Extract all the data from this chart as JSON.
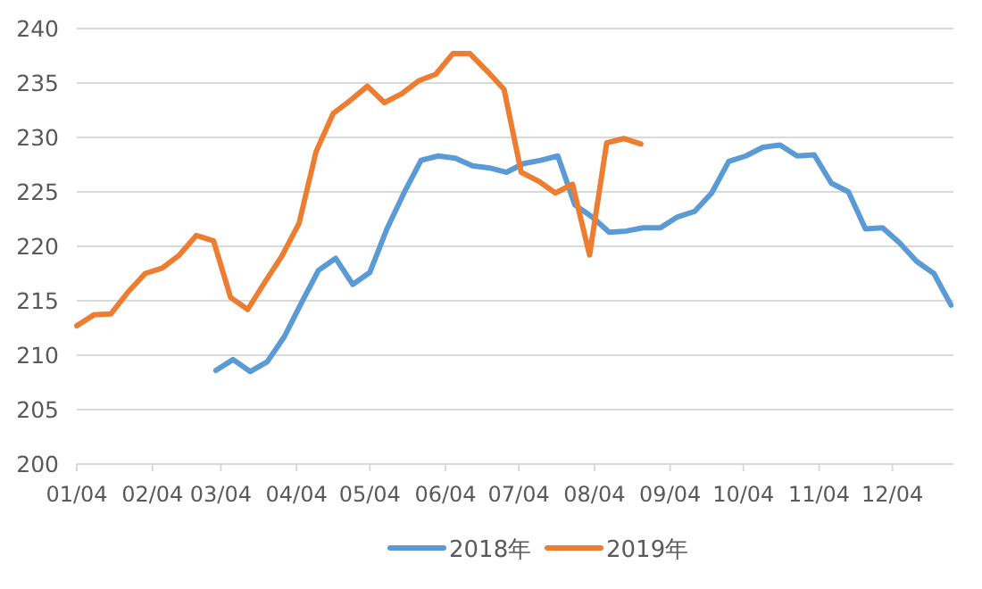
{
  "chart_data": {
    "type": "line",
    "xlim": [
      "--01-04",
      "--12-29"
    ],
    "ylim": [
      200,
      240
    ],
    "yticks": [
      200,
      205,
      210,
      215,
      220,
      225,
      230,
      235,
      240
    ],
    "xticks": [
      {
        "value": "--01-04",
        "label": "01/04"
      },
      {
        "value": "--02-04",
        "label": "02/04"
      },
      {
        "value": "--03-04",
        "label": "03/04"
      },
      {
        "value": "--04-04",
        "label": "04/04"
      },
      {
        "value": "--05-04",
        "label": "05/04"
      },
      {
        "value": "--06-04",
        "label": "06/04"
      },
      {
        "value": "--07-04",
        "label": "07/04"
      },
      {
        "value": "--08-04",
        "label": "08/04"
      },
      {
        "value": "--09-04",
        "label": "09/04"
      },
      {
        "value": "--10-04",
        "label": "10/04"
      },
      {
        "value": "--11-04",
        "label": "11/04"
      },
      {
        "value": "--12-04",
        "label": "12/04"
      }
    ],
    "grid": "y",
    "legend": "bottom",
    "marker": "none",
    "line_style": "solid",
    "series": [
      {
        "name": "2018年",
        "color": "#5b9bd5",
        "x": [
          "--03-02",
          "--03-09",
          "--03-16",
          "--03-23",
          "--03-30",
          "--04-06",
          "--04-13",
          "--04-20",
          "--04-27",
          "--05-04",
          "--05-11",
          "--05-18",
          "--05-25",
          "--06-01",
          "--06-08",
          "--06-15",
          "--06-22",
          "--06-29",
          "--07-06",
          "--07-13",
          "--07-20",
          "--07-27",
          "--08-03",
          "--08-10",
          "--08-17",
          "--08-24",
          "--08-31",
          "--09-07",
          "--09-14",
          "--09-21",
          "--09-28",
          "--10-05",
          "--10-12",
          "--10-19",
          "--10-26",
          "--11-02",
          "--11-09",
          "--11-16",
          "--11-23",
          "--11-30",
          "--12-07",
          "--12-14",
          "--12-21",
          "--12-28"
        ],
        "values": [
          208.6,
          209.6,
          208.5,
          209.4,
          211.7,
          214.8,
          217.8,
          218.9,
          216.5,
          217.6,
          221.6,
          224.9,
          227.9,
          228.3,
          228.1,
          227.4,
          227.2,
          226.8,
          227.6,
          227.9,
          228.3,
          223.8,
          222.7,
          221.3,
          221.4,
          221.7,
          221.7,
          222.7,
          223.2,
          224.9,
          227.8,
          228.3,
          229.1,
          229.3,
          228.3,
          228.4,
          225.8,
          225.0,
          221.6,
          221.7,
          220.3,
          218.6,
          217.5,
          214.6
        ]
      },
      {
        "name": "2019年",
        "color": "#ed7d31",
        "x": [
          "--01-04",
          "--01-11",
          "--01-18",
          "--01-25",
          "--02-01",
          "--02-08",
          "--02-15",
          "--02-22",
          "--03-01",
          "--03-08",
          "--03-15",
          "--03-22",
          "--03-29",
          "--04-05",
          "--04-12",
          "--04-19",
          "--04-26",
          "--05-03",
          "--05-10",
          "--05-17",
          "--05-24",
          "--05-31",
          "--06-07",
          "--06-14",
          "--06-21",
          "--06-28",
          "--07-05",
          "--07-12",
          "--07-19",
          "--07-26",
          "--08-02",
          "--08-09",
          "--08-16",
          "--08-23"
        ],
        "values": [
          212.7,
          213.7,
          213.8,
          215.8,
          217.5,
          218.0,
          219.2,
          221.0,
          220.5,
          215.3,
          214.2,
          216.7,
          219.1,
          222.1,
          228.7,
          232.2,
          233.4,
          234.7,
          233.2,
          234.0,
          235.2,
          235.8,
          237.7,
          237.7,
          236.1,
          234.4,
          226.8,
          226.0,
          224.9,
          225.7,
          219.2,
          229.5,
          229.9,
          229.4
        ]
      }
    ]
  }
}
